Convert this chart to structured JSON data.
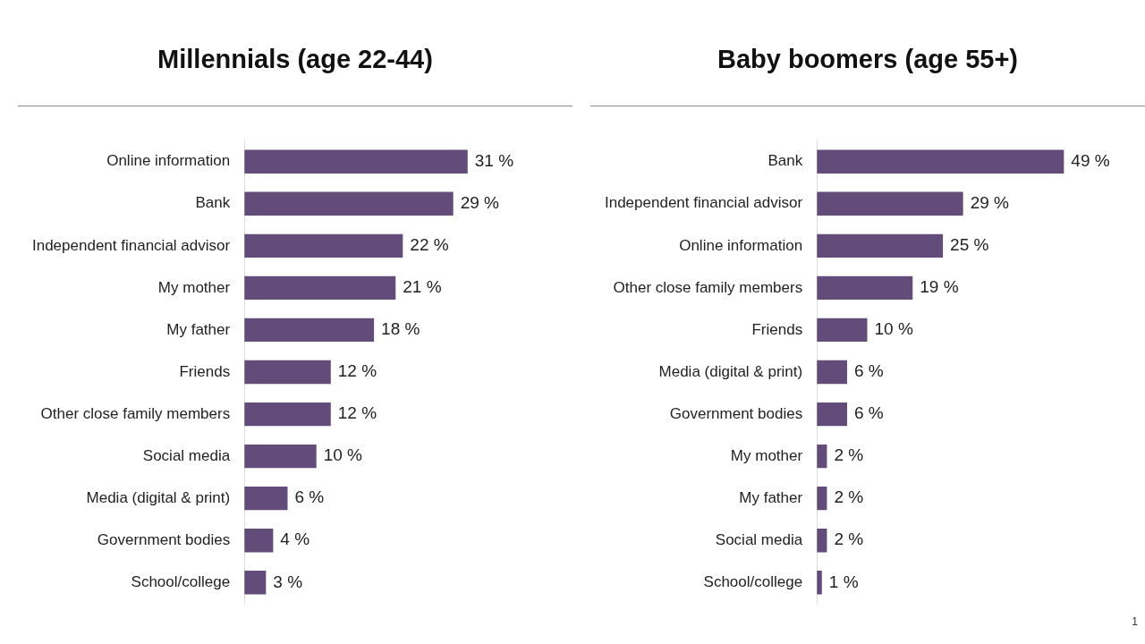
{
  "chart_data": [
    {
      "type": "bar",
      "orientation": "horizontal",
      "title": "Millennials (age 22-44)",
      "categories": [
        "Online information",
        "Bank",
        "Independent financial advisor",
        "My mother",
        "My father",
        "Friends",
        "Other close family members",
        "Social media",
        "Media (digital & print)",
        "Government bodies",
        "School/college"
      ],
      "values": [
        31,
        29,
        22,
        21,
        18,
        12,
        12,
        10,
        6,
        4,
        3
      ],
      "value_labels": [
        "31 %",
        "29 %",
        "22 %",
        "21 %",
        "18 %",
        "12 %",
        "12 %",
        "10 %",
        "6 %",
        "4 %",
        "3 %"
      ],
      "color": "#634b7a",
      "tick_labels": "y"
    },
    {
      "type": "bar",
      "orientation": "horizontal",
      "title": "Baby boomers (age 55+)",
      "categories": [
        "Bank",
        "Independent financial advisor",
        "Online information",
        "Other close family members",
        "Friends",
        "Media (digital & print)",
        "Government bodies",
        "My mother",
        "My father",
        "Social media",
        "School/college"
      ],
      "values": [
        49,
        29,
        25,
        19,
        10,
        6,
        6,
        2,
        2,
        2,
        1
      ],
      "value_labels": [
        "49 %",
        "29 %",
        "25 %",
        "19 %",
        "10 %",
        "6 %",
        "6 %",
        "2 %",
        "2 %",
        "2 %",
        "1 %"
      ],
      "color": "#634b7a",
      "tick_labels": "y",
      "annotations": [
        "1"
      ]
    }
  ]
}
